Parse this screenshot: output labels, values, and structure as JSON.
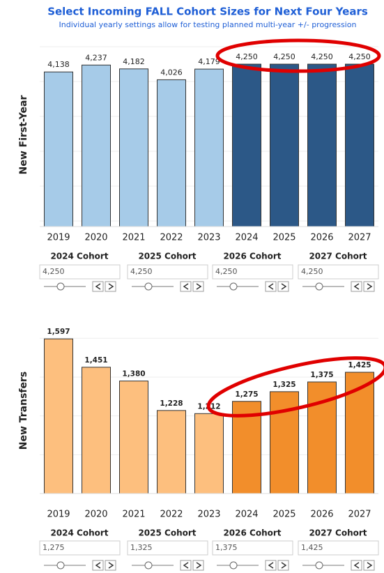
{
  "title": "Select Incoming FALL Cohort Sizes for Next Four Years",
  "subtitle": "Individual yearly settings allow for testing planned multi-year +/- progression",
  "chart_data": [
    {
      "type": "bar",
      "ylabel": "New First-Year",
      "categories": [
        "2019",
        "2020",
        "2021",
        "2022",
        "2023",
        "2024",
        "2025",
        "2026",
        "2027"
      ],
      "values": [
        4138,
        4237,
        4182,
        4026,
        4179,
        4250,
        4250,
        4250,
        4250
      ],
      "value_labels": [
        "4,138",
        "4,237",
        "4,182",
        "4,026",
        "4,179",
        "4,250",
        "4,250",
        "4,250",
        "4,250"
      ],
      "colors": [
        "#a6cbe8",
        "#a6cbe8",
        "#a6cbe8",
        "#a6cbe8",
        "#a6cbe8",
        "#2c5887",
        "#2c5887",
        "#2c5887",
        "#2c5887"
      ],
      "ylim": [
        1920,
        4550
      ],
      "yticks": [
        2000,
        2500,
        3000,
        3500,
        4000,
        4500
      ],
      "grid": true
    },
    {
      "type": "bar",
      "ylabel": "New Transfers",
      "categories": [
        "2019",
        "2020",
        "2021",
        "2022",
        "2023",
        "2024",
        "2025",
        "2026",
        "2027"
      ],
      "values": [
        1597,
        1451,
        1380,
        1228,
        1212,
        1275,
        1325,
        1375,
        1425
      ],
      "value_labels": [
        "1,597",
        "1,451",
        "1,380",
        "1,228",
        "1,212",
        "1,275",
        "1,325",
        "1,375",
        "1,425"
      ],
      "colors": [
        "#fdbf7e",
        "#fdbf7e",
        "#fdbf7e",
        "#fdbf7e",
        "#fdbf7e",
        "#f28e2b",
        "#f28e2b",
        "#f28e2b",
        "#f28e2b"
      ],
      "ylim": [
        800,
        1655
      ],
      "yticks": [
        1000,
        1200,
        1400,
        1600
      ],
      "grid": true
    }
  ],
  "controls": [
    {
      "items": [
        {
          "label": "2024 Cohort",
          "value": "4,250"
        },
        {
          "label": "2025 Cohort",
          "value": "4,250"
        },
        {
          "label": "2026 Cohort",
          "value": "4,250"
        },
        {
          "label": "2027 Cohort",
          "value": "4,250"
        }
      ]
    },
    {
      "items": [
        {
          "label": "2024 Cohort",
          "value": "1,275"
        },
        {
          "label": "2025 Cohort",
          "value": "1,325"
        },
        {
          "label": "2026 Cohort",
          "value": "1,375"
        },
        {
          "label": "2027 Cohort",
          "value": "1,425"
        }
      ]
    }
  ]
}
